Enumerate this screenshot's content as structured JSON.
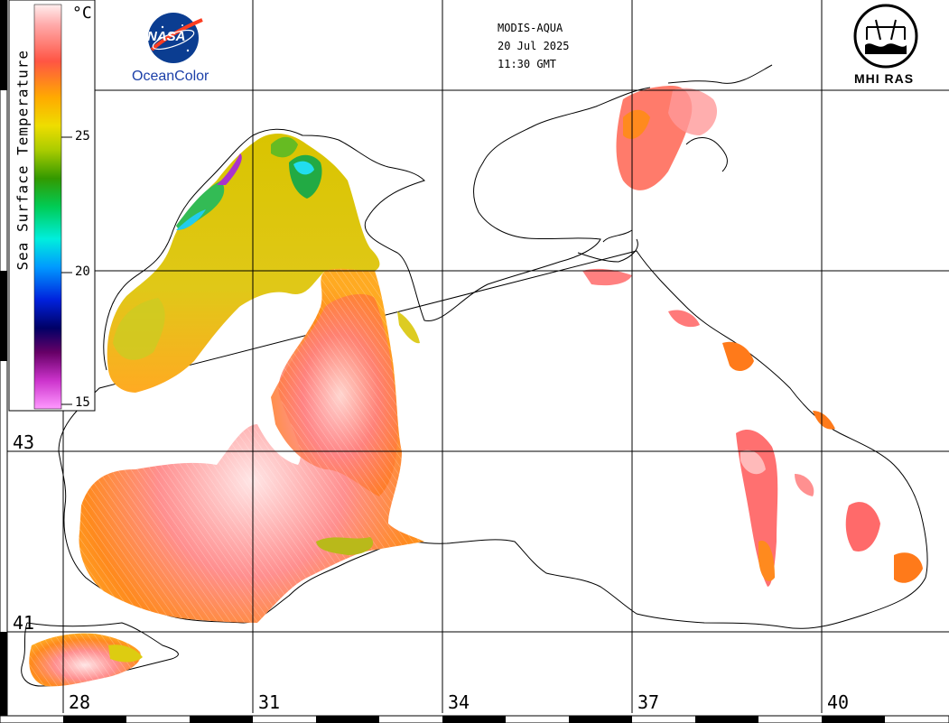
{
  "header": {
    "sensor": "MODIS-AQUA",
    "date": "20 Jul 2025",
    "time": "11:30 GMT"
  },
  "logos": {
    "nasa": "NASA",
    "oceancolor": "OceanColor",
    "institute": "MHI RAS"
  },
  "legend": {
    "title": "Sea Surface Temperature",
    "unit": "°C",
    "ticks": [
      "25",
      "20",
      "15"
    ],
    "colors": [
      "#ff88ff",
      "#cc33cc",
      "#660066",
      "#000088",
      "#0033ff",
      "#00ccff",
      "#00cc66",
      "#33aa00",
      "#ccdd00",
      "#ffcc00",
      "#ff7711",
      "#ff5555",
      "#ffcccc"
    ]
  },
  "grid": {
    "latitudes": [
      "43",
      "41"
    ],
    "longitudes": [
      "28",
      "31",
      "34",
      "37",
      "40"
    ]
  },
  "colors": {
    "warm_core": "#ffdede",
    "warm": "#ff7b7b",
    "orange": "#ff8a1e",
    "yellow": "#ddcc11",
    "cool": "#33bb22",
    "cold": "#22ccee",
    "coast": "#000000"
  }
}
